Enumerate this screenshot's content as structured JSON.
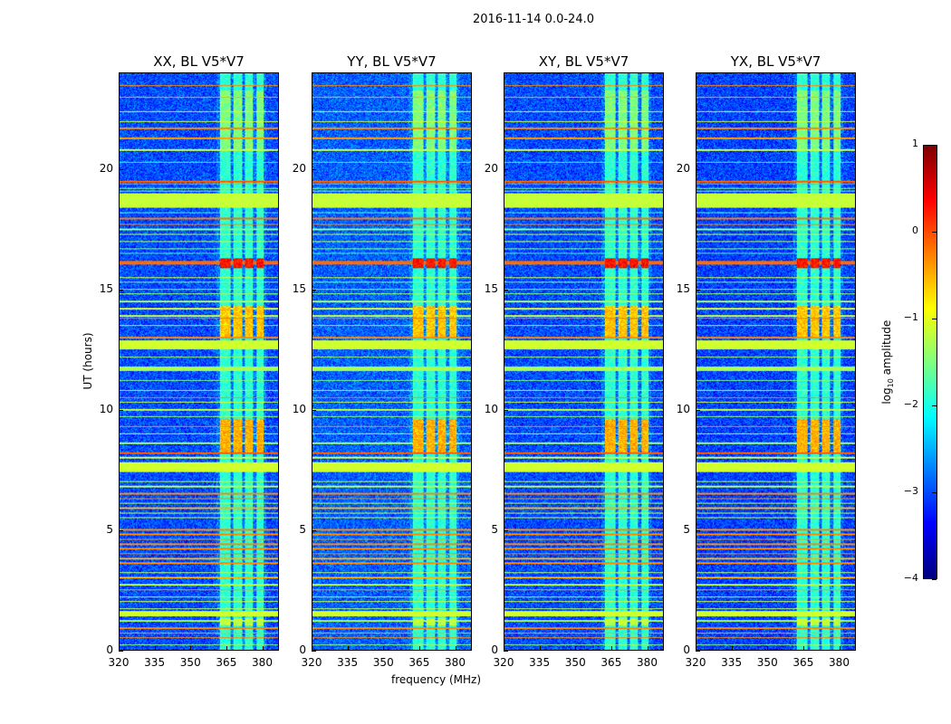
{
  "chart_data": {
    "type": "heatmap",
    "suptitle": "2016-11-14 0.0-24.0",
    "panels": [
      {
        "title": "XX, BL V5*V7",
        "gain": 0.0
      },
      {
        "title": "YY, BL V5*V7",
        "gain": 0.1
      },
      {
        "title": "XY, BL V5*V7",
        "gain": 0.0
      },
      {
        "title": "YX, BL V5*V7",
        "gain": -0.05
      }
    ],
    "xlabel": "frequency (MHz)",
    "ylabel": "UT (hours)",
    "xlim": [
      320,
      387
    ],
    "ylim": [
      0,
      24
    ],
    "xticks": [
      "320",
      "335",
      "350",
      "365",
      "380"
    ],
    "xtick_values": [
      320,
      335,
      350,
      365,
      380
    ],
    "yticks": [
      "0",
      "5",
      "10",
      "15",
      "20"
    ],
    "ytick_values": [
      0,
      5,
      10,
      15,
      20
    ],
    "colorbar": {
      "label": "log",
      "label_sub": "10",
      "label_rest": " amplitude",
      "range": [
        -4,
        1
      ],
      "ticks": [
        "1",
        "0",
        "−1",
        "−2",
        "−3",
        "−4"
      ],
      "tick_values": [
        1,
        0,
        -1,
        -2,
        -3,
        -4
      ],
      "colormap": "jet"
    },
    "background_level": -3.0,
    "horizontal_features": [
      [
        23.5,
        0.05,
        -0.3
      ],
      [
        23.0,
        0.05,
        -0.5
      ],
      [
        22.4,
        0.06,
        -1.1
      ],
      [
        22.0,
        0.05,
        -1.1
      ],
      [
        21.7,
        0.06,
        -0.3
      ],
      [
        21.3,
        0.05,
        -0.4
      ],
      [
        20.8,
        0.06,
        -1.1
      ],
      [
        20.3,
        0.04,
        -2.0
      ],
      [
        19.5,
        0.08,
        -0.1
      ],
      [
        19.4,
        0.05,
        -0.4
      ],
      [
        19.2,
        0.04,
        -1.5
      ],
      [
        19.1,
        0.04,
        -1.5
      ],
      [
        18.7,
        0.6,
        -1.15
      ],
      [
        18.2,
        0.05,
        -1.8
      ],
      [
        17.95,
        0.06,
        -0.2
      ],
      [
        17.7,
        0.05,
        -0.3
      ],
      [
        17.5,
        0.05,
        -1.5
      ],
      [
        17.3,
        0.05,
        -1.2
      ],
      [
        17.0,
        0.05,
        -1.2
      ],
      [
        16.7,
        0.05,
        -1.5
      ],
      [
        16.5,
        0.05,
        -1.8
      ],
      [
        16.1,
        0.15,
        -0.15
      ],
      [
        15.5,
        0.06,
        -1.1
      ],
      [
        15.3,
        0.04,
        -1.5
      ],
      [
        15.0,
        0.04,
        -1.4
      ],
      [
        14.8,
        0.04,
        -1.4
      ],
      [
        14.5,
        0.05,
        -1.3
      ],
      [
        14.2,
        0.06,
        -1.0
      ],
      [
        13.9,
        0.05,
        -1.1
      ],
      [
        13.8,
        0.05,
        -0.2
      ],
      [
        13.5,
        0.05,
        -1.2
      ],
      [
        13.0,
        0.05,
        -0.3
      ],
      [
        12.7,
        0.35,
        -1.1
      ],
      [
        12.2,
        0.05,
        -1.3
      ],
      [
        11.7,
        0.2,
        -1.3
      ],
      [
        11.2,
        0.04,
        -1.5
      ],
      [
        10.8,
        0.05,
        -1.2
      ],
      [
        10.5,
        0.06,
        -0.3
      ],
      [
        10.3,
        0.05,
        -1.1
      ],
      [
        10.0,
        0.06,
        -1.2
      ],
      [
        9.7,
        0.04,
        -1.4
      ],
      [
        9.3,
        0.05,
        -0.3
      ],
      [
        9.0,
        0.05,
        -1.2
      ],
      [
        8.6,
        0.08,
        -1.3
      ],
      [
        8.2,
        0.08,
        -0.1
      ],
      [
        8.0,
        0.05,
        -1.1
      ],
      [
        7.6,
        0.4,
        -1.1
      ],
      [
        7.0,
        0.05,
        -1.3
      ],
      [
        6.8,
        0.05,
        -1.2
      ],
      [
        6.5,
        0.05,
        -0.3
      ],
      [
        6.3,
        0.05,
        -0.3
      ],
      [
        6.1,
        0.05,
        -1.2
      ],
      [
        5.9,
        0.05,
        -0.5
      ],
      [
        5.7,
        0.05,
        -1.2
      ],
      [
        5.5,
        0.06,
        -1.1
      ],
      [
        5.0,
        0.06,
        -0.3
      ],
      [
        4.8,
        0.06,
        -0.3
      ],
      [
        4.6,
        0.06,
        -0.4
      ],
      [
        4.4,
        0.06,
        -0.3
      ],
      [
        4.2,
        0.06,
        -0.3
      ],
      [
        4.0,
        0.06,
        -0.3
      ],
      [
        3.8,
        0.06,
        -0.5
      ],
      [
        3.6,
        0.06,
        -0.3
      ],
      [
        3.2,
        0.05,
        -1.2
      ],
      [
        3.0,
        0.05,
        -0.5
      ],
      [
        2.7,
        0.05,
        -1.2
      ],
      [
        2.5,
        0.05,
        -0.4
      ],
      [
        2.2,
        0.05,
        -1.2
      ],
      [
        2.0,
        0.05,
        -1.1
      ],
      [
        1.7,
        0.05,
        -1.2
      ],
      [
        1.5,
        0.2,
        -1.1
      ],
      [
        1.2,
        0.05,
        -1.3
      ],
      [
        0.9,
        0.05,
        -0.3
      ],
      [
        0.7,
        0.05,
        -0.5
      ],
      [
        0.5,
        0.05,
        -0.3
      ],
      [
        0.2,
        0.05,
        -1.4
      ]
    ],
    "frequency_blocks_mhz": [
      [
        362.5,
        367
      ],
      [
        368,
        372
      ],
      [
        373,
        376.5
      ],
      [
        378,
        381
      ]
    ],
    "block_time_levels": [
      [
        0.0,
        24.0,
        -1.9
      ],
      [
        20.8,
        23.3,
        -1.5
      ],
      [
        15.9,
        16.3,
        0.3
      ],
      [
        13.0,
        14.3,
        -0.6
      ],
      [
        8.2,
        9.6,
        -0.5
      ],
      [
        1.0,
        1.3,
        -1.2
      ]
    ]
  }
}
